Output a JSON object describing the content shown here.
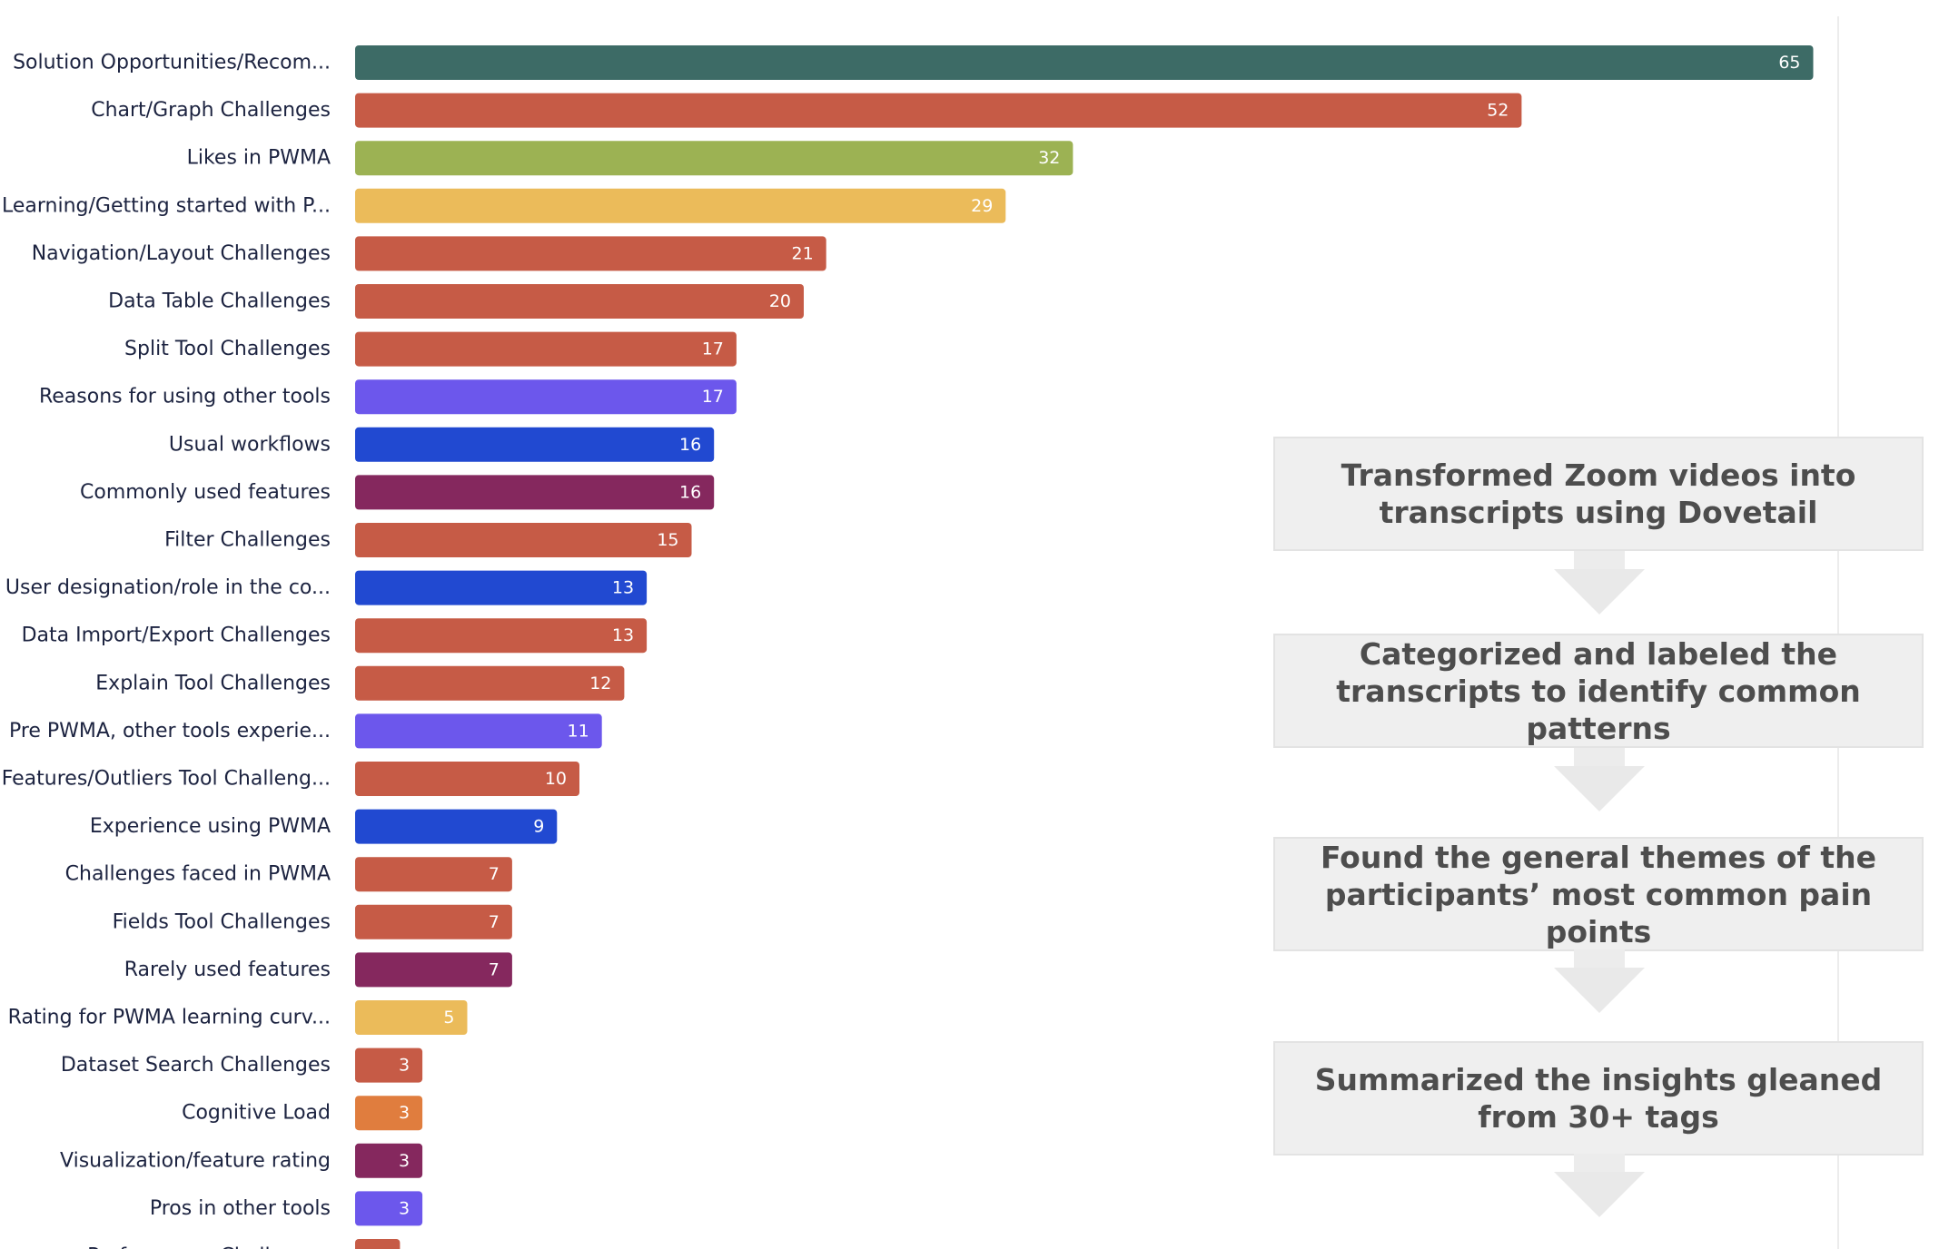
{
  "chart_data": {
    "type": "bar",
    "orientation": "horizontal",
    "categories": [
      "Solution Opportunities/Recom...",
      "Chart/Graph Challenges",
      "Likes in PWMA",
      "Learning/Getting started with P...",
      "Navigation/Layout Challenges",
      "Data Table Challenges",
      "Split Tool Challenges",
      "Reasons for using other tools",
      "Usual workflows",
      "Commonly used features",
      "Filter Challenges",
      "User designation/role in the co...",
      "Data Import/Export Challenges",
      "Explain Tool Challenges",
      "Pre PWMA, other tools experie...",
      "Features/Outliers Tool Challeng...",
      "Experience using PWMA",
      "Challenges faced in PWMA",
      "Fields Tool Challenges",
      "Rarely used features",
      "Rating for PWMA learning curv...",
      "Dataset Search Challenges",
      "Cognitive Load",
      "Visualization/feature rating",
      "Pros in other tools",
      "Performance Challenges"
    ],
    "values": [
      65,
      52,
      32,
      29,
      21,
      20,
      17,
      17,
      16,
      16,
      15,
      13,
      13,
      12,
      11,
      10,
      9,
      7,
      7,
      7,
      5,
      3,
      3,
      3,
      3,
      2
    ],
    "colors": [
      "#3d6b66",
      "#c65b46",
      "#9cb253",
      "#ebbb5a",
      "#c65b46",
      "#c65b46",
      "#c65b46",
      "#6c57ec",
      "#2149d1",
      "#85285e",
      "#c65b46",
      "#2149d1",
      "#c65b46",
      "#c65b46",
      "#6c57ec",
      "#c65b46",
      "#2149d1",
      "#c65b46",
      "#c65b46",
      "#85285e",
      "#ebbb5a",
      "#c65b46",
      "#e07d3e",
      "#85285e",
      "#6c57ec",
      "#c65b46"
    ],
    "xlim": [
      0,
      66
    ],
    "title": "",
    "xlabel": "",
    "ylabel": ""
  },
  "process_steps": [
    "Transformed Zoom videos into transcripts using Dovetail",
    "Categorized and labeled the transcripts to identify common patterns",
    "Found the general themes of the participants’ most common pain points",
    "Summarized the insights gleaned from 30+ tags"
  ]
}
